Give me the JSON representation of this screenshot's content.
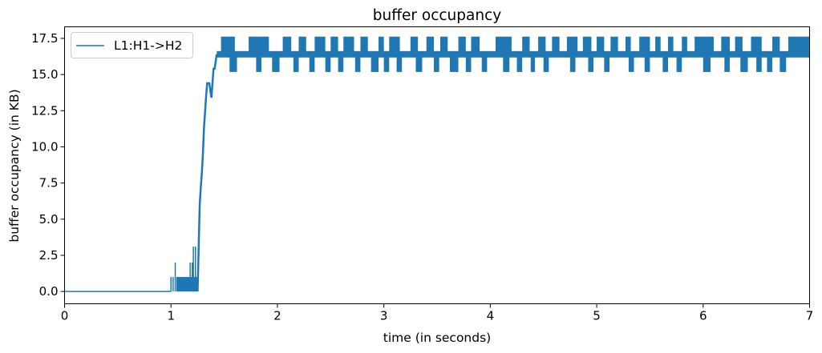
{
  "chart_data": {
    "type": "line",
    "title": "buffer occupancy",
    "xlabel": "time (in seconds)",
    "ylabel": "buffer occupancy (in KB)",
    "xlim": [
      0,
      7
    ],
    "ylim": [
      -0.85,
      18.3
    ],
    "x_ticks": [
      0,
      1,
      2,
      3,
      4,
      5,
      6,
      7
    ],
    "y_ticks": [
      0.0,
      2.5,
      5.0,
      7.5,
      10.0,
      12.5,
      15.0,
      17.5
    ],
    "x_tick_labels": [
      "0",
      "1",
      "2",
      "3",
      "4",
      "5",
      "6",
      "7"
    ],
    "y_tick_labels": [
      "0.0",
      "2.5",
      "5.0",
      "7.5",
      "10.0",
      "12.5",
      "15.0",
      "17.5"
    ],
    "grid": false,
    "legend_position": "top-left",
    "series": [
      {
        "name": "L1:H1->H2",
        "color": "#1f77b4",
        "baseline": {
          "x": [
            0,
            1.0
          ],
          "y": [
            0,
            0
          ]
        },
        "spikes": [
          {
            "x": 1.0,
            "y": 1.0
          },
          {
            "x": 1.02,
            "y": 1.0
          },
          {
            "x": 1.04,
            "y": 2.0
          },
          {
            "x": 1.07,
            "y": 1.0
          },
          {
            "x": 1.1,
            "y": 1.0
          },
          {
            "x": 1.12,
            "y": 1.0
          },
          {
            "x": 1.14,
            "y": 1.0
          },
          {
            "x": 1.16,
            "y": 1.0
          },
          {
            "x": 1.18,
            "y": 2.0
          },
          {
            "x": 1.2,
            "y": 2.0
          },
          {
            "x": 1.21,
            "y": 3.1
          },
          {
            "x": 1.23,
            "y": 3.1
          }
        ],
        "noise_band": {
          "x_range": [
            1.05,
            1.25
          ],
          "y_range": [
            0,
            1.0
          ]
        },
        "ramp": {
          "x": [
            1.25,
            1.26,
            1.27,
            1.28,
            1.29,
            1.3,
            1.31,
            1.32,
            1.33,
            1.34,
            1.36,
            1.38,
            1.4,
            1.41,
            1.43
          ],
          "y": [
            0,
            3.0,
            6.0,
            7.2,
            8.2,
            9.5,
            11.3,
            12.4,
            13.5,
            14.4,
            14.4,
            13.4,
            15.4,
            15.4,
            16.4
          ]
        },
        "steady_state": {
          "x_range": [
            1.43,
            7.0
          ],
          "levels": [
            15.4,
            16.4,
            17.4
          ],
          "high_segments": [
            [
              1.47,
              1.6
            ],
            [
              1.73,
              1.92
            ],
            [
              2.05,
              2.13
            ],
            [
              2.2,
              2.27
            ],
            [
              2.35,
              2.45
            ],
            [
              2.5,
              2.57
            ],
            [
              2.62,
              2.72
            ],
            [
              2.78,
              2.85
            ],
            [
              2.95,
              3.0
            ],
            [
              3.05,
              3.15
            ],
            [
              3.25,
              3.32
            ],
            [
              3.4,
              3.47
            ],
            [
              3.53,
              3.6
            ],
            [
              3.7,
              3.77
            ],
            [
              3.82,
              3.9
            ],
            [
              4.05,
              4.2
            ],
            [
              4.3,
              4.37
            ],
            [
              4.45,
              4.52
            ],
            [
              4.58,
              4.65
            ],
            [
              4.72,
              4.82
            ],
            [
              4.87,
              4.95
            ],
            [
              5.0,
              5.07
            ],
            [
              5.13,
              5.2
            ],
            [
              5.27,
              5.32
            ],
            [
              5.4,
              5.5
            ],
            [
              5.55,
              5.6
            ],
            [
              5.67,
              5.72
            ],
            [
              5.8,
              5.85
            ],
            [
              5.92,
              6.1
            ],
            [
              6.17,
              6.25
            ],
            [
              6.3,
              6.37
            ],
            [
              6.45,
              6.55
            ],
            [
              6.65,
              6.72
            ],
            [
              6.8,
              7.0
            ]
          ],
          "low_segments": [
            [
              1.55,
              1.62
            ],
            [
              1.8,
              1.85
            ],
            [
              1.95,
              2.02
            ],
            [
              2.15,
              2.2
            ],
            [
              2.3,
              2.35
            ],
            [
              2.45,
              2.5
            ],
            [
              2.57,
              2.62
            ],
            [
              2.73,
              2.78
            ],
            [
              2.88,
              2.95
            ],
            [
              3.0,
              3.05
            ],
            [
              3.12,
              3.17
            ],
            [
              3.3,
              3.36
            ],
            [
              3.47,
              3.52
            ],
            [
              3.62,
              3.7
            ],
            [
              3.77,
              3.82
            ],
            [
              3.92,
              3.97
            ],
            [
              4.12,
              4.18
            ],
            [
              4.25,
              4.3
            ],
            [
              4.38,
              4.42
            ],
            [
              4.5,
              4.55
            ],
            [
              4.75,
              4.8
            ],
            [
              4.92,
              4.97
            ],
            [
              5.07,
              5.12
            ],
            [
              5.3,
              5.35
            ],
            [
              5.45,
              5.5
            ],
            [
              5.62,
              5.67
            ],
            [
              5.75,
              5.8
            ],
            [
              6.0,
              6.07
            ],
            [
              6.2,
              6.25
            ],
            [
              6.35,
              6.42
            ],
            [
              6.5,
              6.55
            ],
            [
              6.6,
              6.65
            ],
            [
              6.72,
              6.78
            ]
          ]
        }
      }
    ]
  }
}
